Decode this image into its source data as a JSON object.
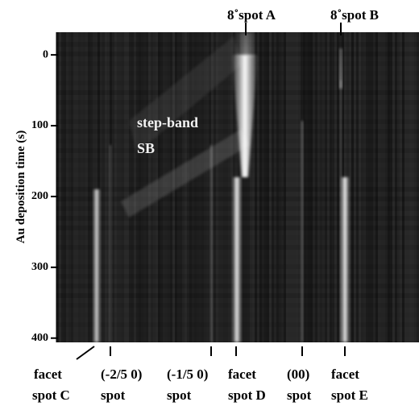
{
  "chart_data": {
    "type": "image",
    "ylabel": "Au deposition time (s)",
    "ylim": [
      -32,
      406
    ],
    "yticks": [
      0,
      100,
      200,
      300,
      400
    ],
    "y_inverted": true,
    "top_labels": [
      "8˚spot A",
      "8˚spot B"
    ],
    "bottom_labels": [
      [
        "facet",
        "spot C"
      ],
      [
        "(-2/5 0)",
        "spot"
      ],
      [
        "(-1/5 0)",
        "spot"
      ],
      [
        "facet",
        "spot D"
      ],
      [
        "(00)",
        "spot"
      ],
      [
        "facet",
        "spot E"
      ]
    ],
    "annotation": [
      "step-band",
      "SB"
    ]
  }
}
